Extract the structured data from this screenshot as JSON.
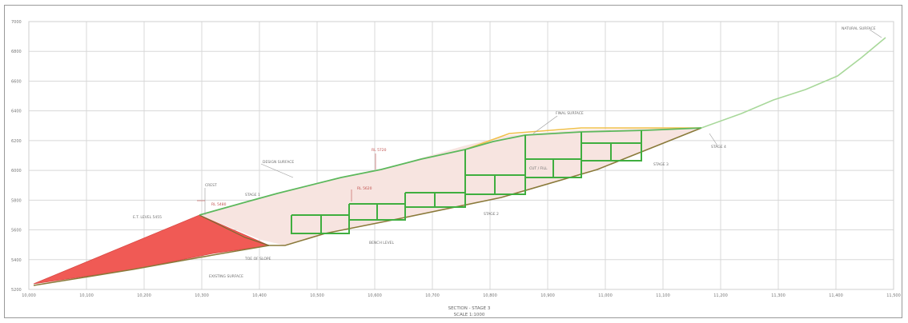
{
  "drawing": {
    "title": "SECTION - STAGE 3",
    "scale": "SCALE 1:1000"
  },
  "axes": {
    "y_ticks": [
      "7000",
      "6800",
      "6600",
      "6400",
      "6200",
      "6000",
      "5800",
      "5600",
      "5400",
      "5200"
    ],
    "x_ticks": [
      "10,000",
      "10,100",
      "10,200",
      "10,300",
      "10,400",
      "10,500",
      "10,600",
      "10,700",
      "10,800",
      "10,900",
      "11,000",
      "11,100",
      "11,200",
      "11,300",
      "11,400",
      "11,500"
    ]
  },
  "annotations": {
    "natural_surface": "NATURAL SURFACE",
    "final_surface": "FINAL SURFACE",
    "design_surface": "DESIGN SURFACE",
    "existing_surface": "EXISTING SURFACE",
    "stage1": "STAGE 1",
    "stage2": "STAGE 2",
    "stage3": "STAGE 3",
    "stage4": "STAGE 4",
    "bench_note": "BENCH LEVEL",
    "toe_note": "TOE OF SLOPE",
    "cut_fill": "CUT / FILL",
    "red_a": "RL 5480",
    "red_b": "RL 5620",
    "red_c": "RL 5720",
    "left_note": "E.T. LEVEL 5455",
    "crest_note": "CREST"
  },
  "colors": {
    "grid": "#d8d8d8",
    "green_surface": "#5cb85c",
    "light_green": "#a8d89a",
    "orange_surface": "#f0c04a",
    "brown_base": "#8a7a3a",
    "red_fill": "#f05a55",
    "pink_hatch": "#f7e4e0"
  }
}
